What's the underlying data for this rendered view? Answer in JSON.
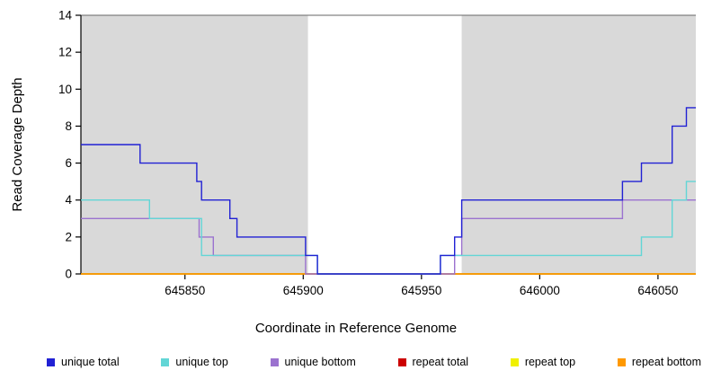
{
  "chart_data": {
    "type": "line",
    "subtype": "step-coverage",
    "title": "",
    "xlabel": "Coordinate in Reference Genome",
    "ylabel": "Read Coverage Depth",
    "xlim": [
      645806,
      646066
    ],
    "ylim": [
      0,
      14
    ],
    "x_ticks": [
      645850,
      645900,
      645950,
      646000,
      646050
    ],
    "y_ticks": [
      0,
      2,
      4,
      6,
      8,
      10,
      12,
      14
    ],
    "grid": false,
    "legend_position": "bottom",
    "shaded_regions": [
      {
        "x0": 645806,
        "x1": 645902,
        "color": "#d9d9d9"
      },
      {
        "x0": 645967,
        "x1": 646066,
        "color": "#d9d9d9"
      }
    ],
    "series": [
      {
        "name": "repeat total",
        "color": "#cc0000",
        "steps": [
          [
            645806,
            0
          ]
        ]
      },
      {
        "name": "repeat top",
        "color": "#f0f000",
        "steps": [
          [
            645806,
            0
          ]
        ]
      },
      {
        "name": "repeat bottom",
        "color": "#ff9900",
        "steps": [
          [
            645806,
            0
          ]
        ]
      },
      {
        "name": "unique bottom",
        "color": "#9b72cf",
        "steps": [
          [
            645806,
            3
          ],
          [
            645856,
            2
          ],
          [
            645862,
            1
          ],
          [
            645901,
            0
          ],
          [
            645964,
            1
          ],
          [
            645967,
            3
          ],
          [
            646035,
            4
          ]
        ]
      },
      {
        "name": "unique top",
        "color": "#62d6d6",
        "steps": [
          [
            645806,
            4
          ],
          [
            645835,
            3
          ],
          [
            645857,
            1
          ],
          [
            645906,
            0
          ],
          [
            645958,
            1
          ],
          [
            646043,
            2
          ],
          [
            646056,
            4
          ],
          [
            646062,
            5
          ]
        ]
      },
      {
        "name": "unique total",
        "color": "#2121d4",
        "steps": [
          [
            645806,
            7
          ],
          [
            645831,
            6
          ],
          [
            645855,
            5
          ],
          [
            645857,
            4
          ],
          [
            645869,
            3
          ],
          [
            645872,
            2
          ],
          [
            645901,
            1
          ],
          [
            645906,
            0
          ],
          [
            645958,
            1
          ],
          [
            645964,
            2
          ],
          [
            645967,
            4
          ],
          [
            646035,
            5
          ],
          [
            646043,
            6
          ],
          [
            646056,
            8
          ],
          [
            646062,
            9
          ]
        ]
      }
    ],
    "legend": [
      {
        "label": "unique total",
        "color": "#2121d4"
      },
      {
        "label": "unique top",
        "color": "#62d6d6"
      },
      {
        "label": "unique bottom",
        "color": "#9b72cf"
      },
      {
        "label": "repeat total",
        "color": "#cc0000"
      },
      {
        "label": "repeat top",
        "color": "#f0f000"
      },
      {
        "label": "repeat bottom",
        "color": "#ff9900"
      }
    ]
  }
}
